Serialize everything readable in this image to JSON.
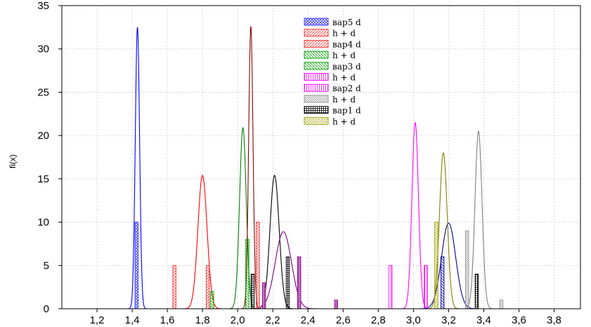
{
  "chart_data": {
    "type": "line",
    "title": "",
    "xlabel": "",
    "ylabel": "fi(x)",
    "xlim": [
      1.0,
      3.95
    ],
    "ylim": [
      0,
      35
    ],
    "x_ticks": [
      "1,2",
      "1,4",
      "1,6",
      "1,8",
      "2,0",
      "2,2",
      "2,4",
      "2,6",
      "2,8",
      "3,0",
      "3,2",
      "3,4",
      "3,6",
      "3,8"
    ],
    "x_tick_values": [
      1.2,
      1.4,
      1.6,
      1.8,
      2.0,
      2.2,
      2.4,
      2.6,
      2.8,
      3.0,
      3.2,
      3.4,
      3.6,
      3.8
    ],
    "y_ticks": [
      0,
      5,
      10,
      15,
      20,
      25,
      30,
      35
    ],
    "grid": true,
    "legend_position": "top-center",
    "legend": [
      {
        "label": "вар5 d",
        "kind": "bar",
        "color": "#3a3aff",
        "pattern": "crosshatch"
      },
      {
        "label": "h + d",
        "kind": "line",
        "color": "#0000ff"
      },
      {
        "label": "вар4 d",
        "kind": "bar",
        "color": "#ff3030",
        "pattern": "diagonal"
      },
      {
        "label": "h + d",
        "kind": "line",
        "color": "#ff0000"
      },
      {
        "label": "вар3 d",
        "kind": "bar",
        "color": "#00a000",
        "pattern": "diagonal"
      },
      {
        "label": "h + d",
        "kind": "line",
        "color": "#008000"
      },
      {
        "label": "вар2 d",
        "kind": "bar",
        "color": "#ff00ff",
        "pattern": "vertical"
      },
      {
        "label": "h + d",
        "kind": "line",
        "color": "#ff00ff"
      },
      {
        "label": "вар1 d",
        "kind": "bar",
        "color": "#000000",
        "pattern": "grid"
      },
      {
        "label": "h + d",
        "kind": "line",
        "color": "#000000"
      }
    ],
    "curves": [
      {
        "color": "#0000ff",
        "mean": 1.43,
        "sd": 0.0123,
        "peak": 32.5
      },
      {
        "color": "#ff0000",
        "mean": 1.8,
        "sd": 0.026,
        "peak": 15.4
      },
      {
        "color": "#008000",
        "mean": 2.03,
        "sd": 0.019,
        "peak": 20.9
      },
      {
        "color": "#8b0000",
        "mean": 2.075,
        "sd": 0.0123,
        "peak": 32.6
      },
      {
        "color": "#000000",
        "mean": 2.21,
        "sd": 0.026,
        "peak": 15.4
      },
      {
        "color": "#800080",
        "mean": 2.26,
        "sd": 0.046,
        "peak": 8.9
      },
      {
        "color": "#ff00ff",
        "mean": 3.01,
        "sd": 0.0185,
        "peak": 21.5
      },
      {
        "color": "#0000a0",
        "mean": 3.2,
        "sd": 0.04,
        "peak": 9.9
      },
      {
        "color": "#808000",
        "mean": 3.17,
        "sd": 0.022,
        "peak": 18.0
      },
      {
        "color": "#808080",
        "mean": 3.37,
        "sd": 0.02,
        "peak": 20.5
      }
    ],
    "bars": [
      {
        "x": 1.425,
        "h": 10,
        "color": "#3a3aff"
      },
      {
        "x": 1.64,
        "h": 5,
        "color": "#ff3030"
      },
      {
        "x": 1.83,
        "h": 5,
        "color": "#ff3030"
      },
      {
        "x": 1.855,
        "h": 2,
        "color": "#00a000"
      },
      {
        "x": 2.055,
        "h": 8,
        "color": "#00a000"
      },
      {
        "x": 2.085,
        "h": 4,
        "color": "#000000"
      },
      {
        "x": 2.115,
        "h": 10,
        "color": "#ff3030"
      },
      {
        "x": 2.15,
        "h": 3,
        "color": "#a000a0"
      },
      {
        "x": 2.285,
        "h": 6,
        "color": "#000000"
      },
      {
        "x": 2.35,
        "h": 6,
        "color": "#a000a0"
      },
      {
        "x": 2.56,
        "h": 1,
        "color": "#a000a0"
      },
      {
        "x": 2.87,
        "h": 5,
        "color": "#ff00ff"
      },
      {
        "x": 3.07,
        "h": 5,
        "color": "#ff00ff"
      },
      {
        "x": 3.13,
        "h": 10,
        "color": "#a0a000"
      },
      {
        "x": 3.165,
        "h": 6,
        "color": "#0000a0"
      },
      {
        "x": 3.305,
        "h": 9,
        "color": "#909090"
      },
      {
        "x": 3.36,
        "h": 4,
        "color": "#000000"
      },
      {
        "x": 3.5,
        "h": 1,
        "color": "#909090"
      }
    ]
  }
}
